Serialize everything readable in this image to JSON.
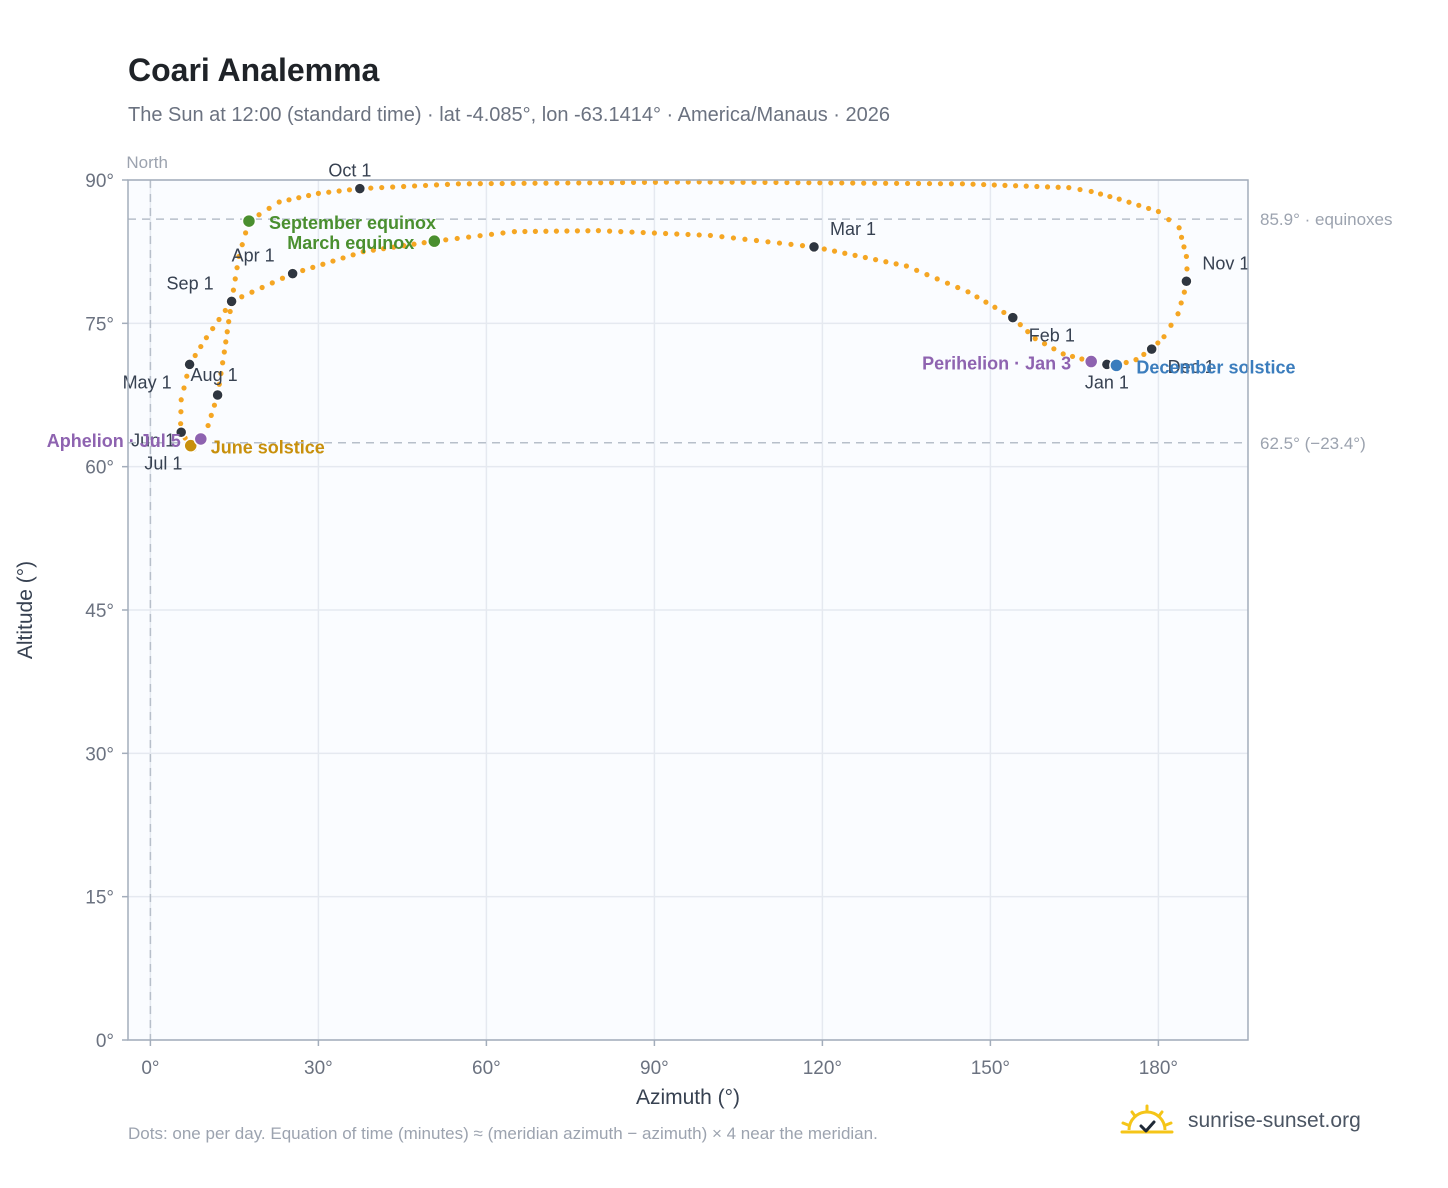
{
  "title": "Coari Analemma",
  "subtitle": "The Sun at 12:00 (standard time) · lat -4.085°, lon -63.1414° · America/Manaus · 2026",
  "footnote": "Dots: one per day. Equation of time (minutes) ≈ (meridian azimuth − azimuth) × 4 near the meridian.",
  "brand": {
    "text": "sunrise-sunset.org",
    "icon": "sun-logo-icon"
  },
  "colors": {
    "path": "#f5a623",
    "month_marker": "#2f3640",
    "equinox": "#4a8f2f",
    "june_solstice": "#c8900c",
    "december_solstice": "#3b7dbd",
    "apsis": "#8e63b0",
    "plot_bg": "#fafcff",
    "grid": "#e5e9f0",
    "frame": "#a3adbb",
    "ref_line": "#b7bfca"
  },
  "chart_data": {
    "type": "scatter",
    "xlabel": "Azimuth (°)",
    "ylabel": "Altitude (°)",
    "xlim": [
      -4,
      196
    ],
    "ylim": [
      0,
      90
    ],
    "x_ticks": [
      0,
      30,
      60,
      90,
      120,
      150,
      180
    ],
    "x_tick_labels": [
      "0°",
      "30°",
      "60°",
      "90°",
      "120°",
      "150°",
      "180°"
    ],
    "y_ticks": [
      0,
      15,
      30,
      45,
      60,
      75,
      90
    ],
    "y_tick_labels": [
      "0°",
      "15°",
      "30°",
      "45°",
      "60°",
      "75°",
      "90°"
    ],
    "grid": true,
    "north_line": {
      "azimuth": 0,
      "label": "North"
    },
    "reference_lines": [
      {
        "altitude": 85.9,
        "label": "85.9° · equinoxes"
      },
      {
        "altitude": 62.5,
        "label": "62.5° (−23.4°)"
      }
    ],
    "path_points": [
      [
        172.5,
        70.6
      ],
      [
        168.0,
        71.0
      ],
      [
        163.0,
        71.8
      ],
      [
        158.0,
        73.4
      ],
      [
        154.0,
        75.6
      ],
      [
        146.0,
        78.3
      ],
      [
        135.0,
        81.0
      ],
      [
        118.5,
        83.0
      ],
      [
        100.0,
        84.2
      ],
      [
        80.0,
        84.7
      ],
      [
        65.0,
        84.6
      ],
      [
        50.7,
        83.6
      ],
      [
        38.0,
        82.5
      ],
      [
        25.4,
        80.2
      ],
      [
        14.5,
        77.3
      ],
      [
        10.0,
        73.5
      ],
      [
        7.0,
        70.7
      ],
      [
        5.5,
        67.0
      ],
      [
        5.4,
        64.5
      ],
      [
        6.2,
        63.0
      ],
      [
        7.2,
        62.2
      ],
      [
        7.5,
        62.0
      ],
      [
        8.6,
        62.6
      ],
      [
        9.0,
        62.9
      ],
      [
        10.3,
        64.3
      ],
      [
        12.0,
        67.5
      ],
      [
        13.2,
        72.0
      ],
      [
        14.5,
        77.3
      ],
      [
        15.8,
        82.0
      ],
      [
        17.6,
        85.7
      ],
      [
        23.0,
        87.7
      ],
      [
        30.0,
        88.6
      ],
      [
        37.4,
        89.1
      ],
      [
        55.0,
        89.6
      ],
      [
        98.0,
        89.8
      ],
      [
        145.0,
        89.6
      ],
      [
        164.0,
        89.2
      ],
      [
        168.0,
        88.8
      ],
      [
        173.0,
        88.0
      ],
      [
        180.0,
        86.7
      ],
      [
        183.7,
        85.0
      ],
      [
        185.0,
        82.0
      ],
      [
        185.2,
        79.4
      ],
      [
        183.5,
        76.0
      ],
      [
        181.0,
        73.6
      ],
      [
        178.8,
        72.3
      ],
      [
        176.0,
        71.2
      ],
      [
        172.5,
        70.6
      ]
    ],
    "month_markers": [
      {
        "label": "Jan 1",
        "azimuth": 170.8,
        "altitude": 70.7
      },
      {
        "label": "Feb 1",
        "azimuth": 154.0,
        "altitude": 75.6
      },
      {
        "label": "Mar 1",
        "azimuth": 118.5,
        "altitude": 83.0
      },
      {
        "label": "Apr 1",
        "azimuth": 25.4,
        "altitude": 80.2
      },
      {
        "label": "May 1",
        "azimuth": 7.0,
        "altitude": 70.7
      },
      {
        "label": "Jun 1",
        "azimuth": 5.5,
        "altitude": 63.6
      },
      {
        "label": "Jul 1",
        "azimuth": 7.5,
        "altitude": 62.0
      },
      {
        "label": "Aug 1",
        "azimuth": 12.0,
        "altitude": 67.5
      },
      {
        "label": "Sep 1",
        "azimuth": 14.5,
        "altitude": 77.3
      },
      {
        "label": "Oct 1",
        "azimuth": 37.4,
        "altitude": 89.1
      },
      {
        "label": "Nov 1",
        "azimuth": 185.0,
        "altitude": 79.4
      },
      {
        "label": "Dec 1",
        "azimuth": 178.8,
        "altitude": 72.3
      }
    ],
    "events": [
      {
        "label": "March equinox",
        "azimuth": 50.7,
        "altitude": 83.6,
        "color_key": "equinox"
      },
      {
        "label": "September equinox",
        "azimuth": 17.6,
        "altitude": 85.7,
        "color_key": "equinox"
      },
      {
        "label": "June solstice",
        "azimuth": 7.2,
        "altitude": 62.2,
        "color_key": "june_solstice"
      },
      {
        "label": "December solstice",
        "azimuth": 172.5,
        "altitude": 70.6,
        "color_key": "december_solstice"
      },
      {
        "label": "Perihelion · Jan 3",
        "azimuth": 168.0,
        "altitude": 71.0,
        "color_key": "apsis"
      },
      {
        "label": "Aphelion · Jul 5",
        "azimuth": 9.0,
        "altitude": 62.9,
        "color_key": "apsis"
      }
    ]
  }
}
